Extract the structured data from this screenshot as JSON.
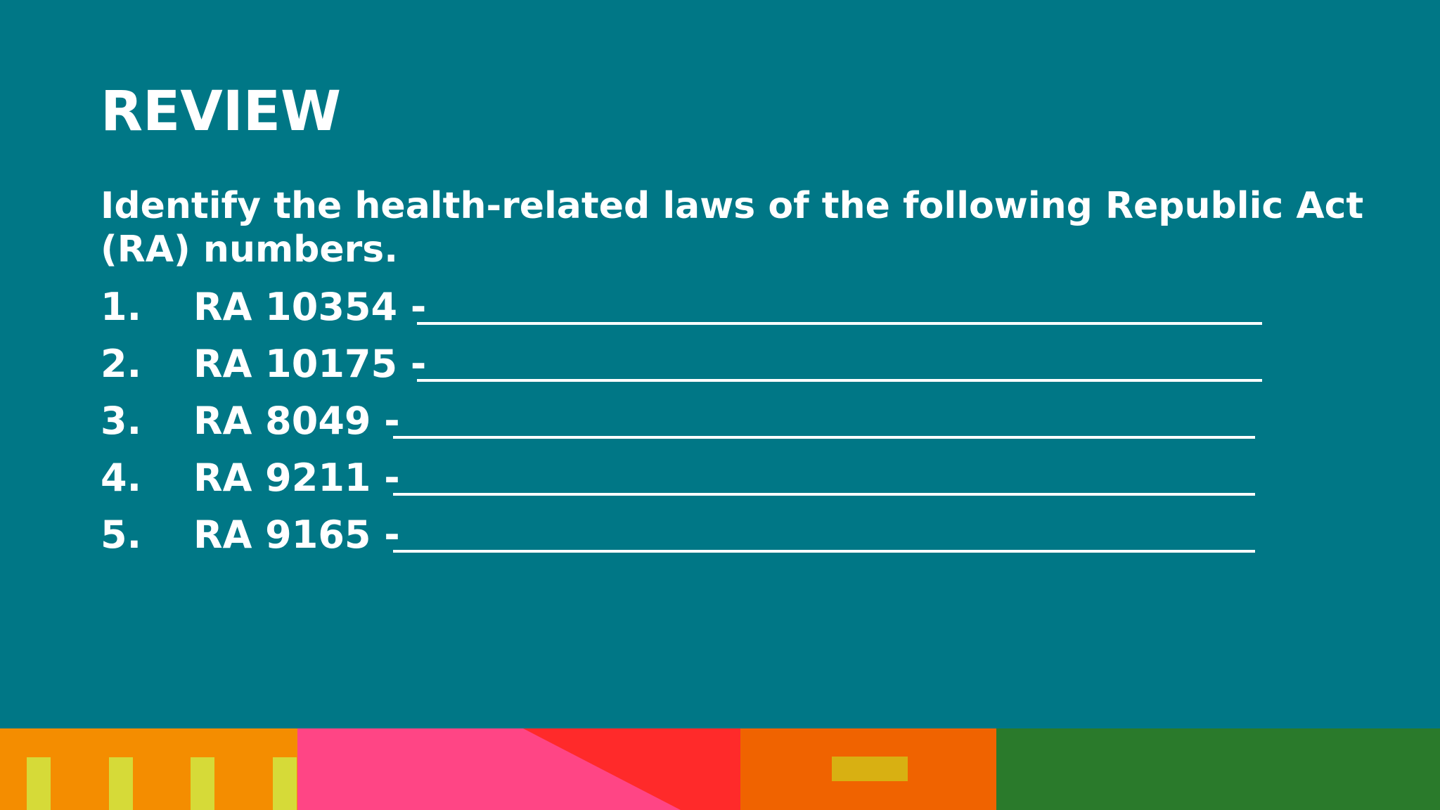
{
  "slide": {
    "title": "REVIEW",
    "prompt": "Identify the health-related laws of the following Republic Act (RA) numbers.",
    "items": [
      {
        "number": "1.",
        "law": "RA 10354 -"
      },
      {
        "number": "2.",
        "law": "RA 10175 -"
      },
      {
        "number": "3.",
        "law": "RA 8049 -"
      },
      {
        "number": "4.",
        "law": "RA 9211 -"
      },
      {
        "number": "5.",
        "law": "RA 9165 -"
      }
    ]
  },
  "colors": {
    "background": "#007786",
    "text": "#ffffff",
    "band_orange": "#f48d00",
    "band_pink": "#ff4585",
    "band_red": "#ff2a2a",
    "band_deep_orange": "#f06300",
    "band_green": "#2a7a2b",
    "stripe_yellow": "#d6da38",
    "bar_mustard": "#d8b012"
  }
}
